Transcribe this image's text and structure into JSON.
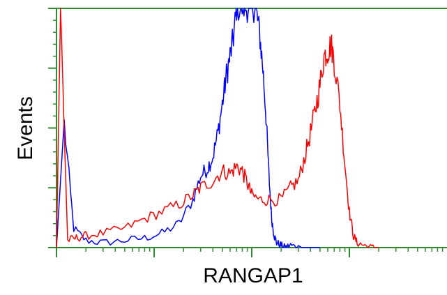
{
  "chart_data": {
    "type": "line",
    "title": "",
    "xlabel": "RANGAP1",
    "ylabel": "Events",
    "x_scale": "log",
    "xlim": [
      1,
      10000
    ],
    "ylim": [
      0,
      100
    ],
    "grid": false,
    "legend": "none",
    "frame_color": "#2e8b2e",
    "series": [
      {
        "color": "#0000ff",
        "x": [
          1,
          1.2,
          1.5,
          2,
          3,
          5,
          8,
          12,
          18,
          25,
          30,
          35,
          40,
          45,
          50,
          55,
          60,
          65,
          70,
          80,
          90,
          100,
          110,
          120,
          130,
          140,
          150,
          160,
          170,
          180,
          200,
          220,
          250,
          300,
          500
        ],
        "y": [
          0,
          52,
          8,
          3,
          2,
          3,
          4,
          6,
          10,
          20,
          30,
          33,
          38,
          48,
          60,
          72,
          80,
          88,
          100,
          100,
          100,
          100,
          100,
          90,
          75,
          55,
          30,
          12,
          5,
          2,
          1,
          0,
          1,
          0,
          0
        ]
      },
      {
        "color": "#ff0000",
        "x": [
          1,
          1.1,
          1.3,
          1.6,
          2,
          3,
          5,
          8,
          12,
          18,
          25,
          30,
          40,
          50,
          60,
          70,
          80,
          90,
          100,
          120,
          150,
          200,
          250,
          300,
          350,
          400,
          450,
          500,
          550,
          600,
          650,
          700,
          800,
          900,
          1000,
          1100,
          1200,
          1400,
          1700,
          2000
        ],
        "y": [
          0,
          100,
          3,
          4,
          5,
          6,
          8,
          12,
          15,
          18,
          22,
          25,
          28,
          32,
          31,
          34,
          32,
          27,
          22,
          20,
          20,
          20,
          25,
          28,
          38,
          48,
          58,
          68,
          80,
          82,
          85,
          78,
          60,
          35,
          15,
          5,
          2,
          1,
          0,
          0
        ]
      }
    ]
  }
}
